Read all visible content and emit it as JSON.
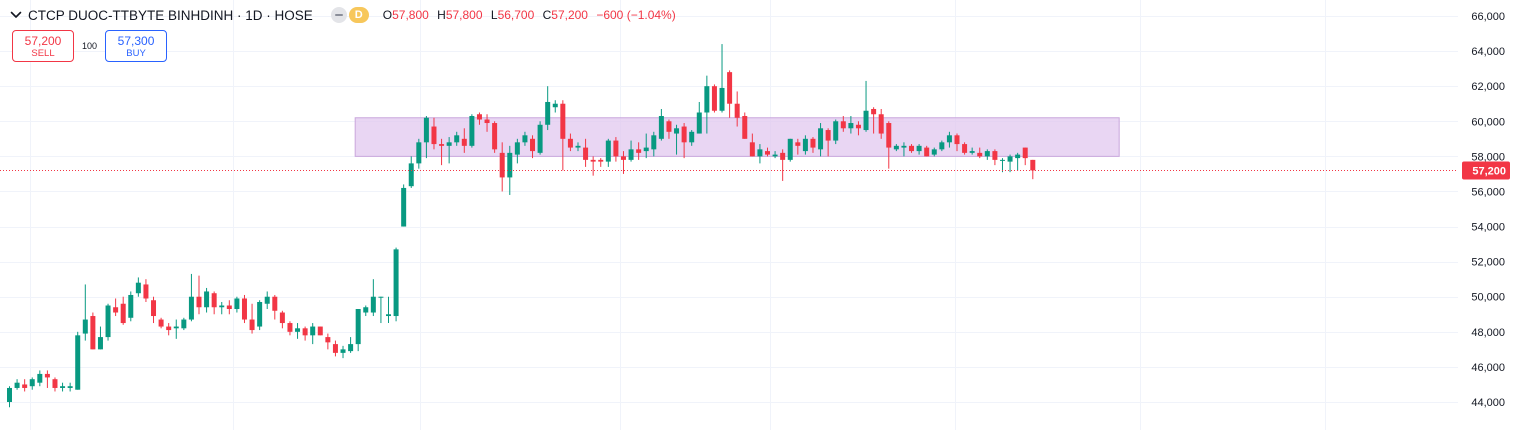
{
  "header": {
    "title": "CTCP DUOC-TTBYTE BINHDINH · 1D · HOSE",
    "badge_label": "D",
    "open_label": "O",
    "open": "57,800",
    "high_label": "H",
    "high": "57,800",
    "low_label": "L",
    "low": "56,700",
    "close_label": "C",
    "close": "57,200",
    "change": "−600 (−1.04%)"
  },
  "trade": {
    "sell_price": "57,200",
    "sell_label": "SELL",
    "quantity": "100",
    "buy_price": "57,300",
    "buy_label": "BUY"
  },
  "colors": {
    "up": "#089981",
    "down": "#f23645",
    "zone_fill": "#e1c8ef",
    "zone_border": "#c9a6dc",
    "grid": "#f0f3fa",
    "axis_text": "#131722",
    "price_label_bg": "#f23645"
  },
  "chart_data": {
    "type": "candlestick",
    "y_ticks": [
      "44,000",
      "46,000",
      "48,000",
      "50,000",
      "52,000",
      "54,000",
      "56,000",
      "58,000",
      "60,000",
      "62,000",
      "64,000",
      "66,000"
    ],
    "ylim": [
      43200,
      66500
    ],
    "last_price": 57200,
    "last_price_label": "57,200",
    "zone": {
      "low": 58000,
      "high": 60200,
      "start_index": 46,
      "end_index": 146
    },
    "candles": [
      [
        44000,
        44800,
        43700,
        44900
      ],
      [
        44800,
        45100,
        44700,
        45300
      ],
      [
        45000,
        44800,
        44600,
        45300
      ],
      [
        44900,
        45300,
        44700,
        45400
      ],
      [
        45100,
        45600,
        44900,
        45800
      ],
      [
        45600,
        45400,
        44800,
        45800
      ],
      [
        45300,
        44800,
        44600,
        45400
      ],
      [
        44800,
        44900,
        44600,
        45100
      ],
      [
        44800,
        44900,
        44600,
        45100
      ],
      [
        44700,
        47800,
        44700,
        48000
      ],
      [
        47900,
        48700,
        47500,
        50700
      ],
      [
        48900,
        47000,
        47000,
        49100
      ],
      [
        47000,
        47700,
        47000,
        48300
      ],
      [
        47700,
        49500,
        47500,
        49600
      ],
      [
        49400,
        49100,
        48900,
        49900
      ],
      [
        49600,
        48500,
        48400,
        50000
      ],
      [
        48800,
        50100,
        48600,
        50300
      ],
      [
        50200,
        50800,
        50000,
        51100
      ],
      [
        50700,
        49900,
        49700,
        51000
      ],
      [
        49800,
        48900,
        48500,
        50000
      ],
      [
        48700,
        48300,
        48200,
        48800
      ],
      [
        48300,
        48100,
        47800,
        48500
      ],
      [
        48200,
        48300,
        47600,
        48700
      ],
      [
        48200,
        48700,
        48100,
        48800
      ],
      [
        48700,
        50000,
        48600,
        51300
      ],
      [
        50000,
        49400,
        49000,
        51200
      ],
      [
        49400,
        50300,
        49100,
        50500
      ],
      [
        50200,
        49400,
        49000,
        50300
      ],
      [
        49400,
        49500,
        49000,
        49700
      ],
      [
        49500,
        49300,
        49000,
        49800
      ],
      [
        49300,
        49900,
        49100,
        50000
      ],
      [
        49900,
        48700,
        48500,
        50100
      ],
      [
        48700,
        48100,
        47900,
        49600
      ],
      [
        48300,
        49700,
        48100,
        49800
      ],
      [
        49600,
        50000,
        49300,
        50300
      ],
      [
        50000,
        49200,
        48700,
        50100
      ],
      [
        49100,
        48500,
        48200,
        49200
      ],
      [
        48500,
        48000,
        47800,
        48600
      ],
      [
        48000,
        48200,
        47600,
        48500
      ],
      [
        48200,
        47800,
        47500,
        48300
      ],
      [
        47800,
        48300,
        47300,
        48500
      ],
      [
        48300,
        47800,
        47800,
        48300
      ],
      [
        47700,
        47400,
        47000,
        47900
      ],
      [
        47300,
        46800,
        46600,
        47500
      ],
      [
        46800,
        47000,
        46500,
        47200
      ],
      [
        46900,
        47300,
        46800,
        47700
      ],
      [
        47300,
        49300,
        46900,
        49300
      ],
      [
        49100,
        49400,
        48900,
        49500
      ],
      [
        49100,
        50000,
        48900,
        51000
      ],
      [
        50000,
        50000,
        48500,
        50000
      ],
      [
        48900,
        49000,
        48500,
        50000
      ],
      [
        48900,
        52700,
        48600,
        52800
      ],
      [
        54000,
        56200,
        54000,
        56400
      ],
      [
        56300,
        57600,
        56200,
        58000
      ],
      [
        57600,
        58800,
        57300,
        59000
      ],
      [
        58800,
        60200,
        57900,
        60300
      ],
      [
        59700,
        58700,
        58400,
        60200
      ],
      [
        58700,
        58600,
        57500,
        59000
      ],
      [
        58600,
        58800,
        57600,
        59100
      ],
      [
        58800,
        59200,
        58600,
        59400
      ],
      [
        59000,
        58600,
        58200,
        59600
      ],
      [
        58600,
        60300,
        58500,
        60400
      ],
      [
        60400,
        60100,
        59800,
        60500
      ],
      [
        60100,
        59900,
        59400,
        60400
      ],
      [
        59900,
        58400,
        58200,
        60000
      ],
      [
        58200,
        56800,
        56000,
        58800
      ],
      [
        56800,
        58200,
        55800,
        58600
      ],
      [
        58100,
        58800,
        57600,
        59000
      ],
      [
        58800,
        59200,
        58600,
        59400
      ],
      [
        59000,
        58300,
        57900,
        59200
      ],
      [
        58200,
        59800,
        58100,
        60000
      ],
      [
        59800,
        61100,
        59500,
        62000
      ],
      [
        60800,
        61000,
        60500,
        61200
      ],
      [
        61000,
        59000,
        57200,
        61200
      ],
      [
        59000,
        58500,
        58300,
        59300
      ],
      [
        58500,
        58600,
        58300,
        58800
      ],
      [
        58500,
        57800,
        57400,
        59000
      ],
      [
        57800,
        57700,
        56900,
        58000
      ],
      [
        57800,
        57700,
        57400,
        57900
      ],
      [
        57700,
        58900,
        57400,
        59000
      ],
      [
        58900,
        58000,
        57700,
        59100
      ],
      [
        58000,
        57800,
        57000,
        58300
      ],
      [
        57800,
        58400,
        57700,
        58900
      ],
      [
        58400,
        58200,
        57800,
        58800
      ],
      [
        58300,
        58500,
        57900,
        59300
      ],
      [
        58400,
        59200,
        58000,
        59400
      ],
      [
        59000,
        60300,
        58900,
        60700
      ],
      [
        60000,
        59400,
        59000,
        60100
      ],
      [
        59300,
        59600,
        58100,
        59800
      ],
      [
        59700,
        58800,
        57900,
        59900
      ],
      [
        58800,
        59400,
        58600,
        59500
      ],
      [
        59300,
        60500,
        59300,
        61100
      ],
      [
        60500,
        62000,
        59300,
        62600
      ],
      [
        62000,
        60600,
        60500,
        62100
      ],
      [
        60600,
        61900,
        60500,
        64400
      ],
      [
        62800,
        61000,
        60200,
        62900
      ],
      [
        61000,
        60200,
        59700,
        61700
      ],
      [
        60300,
        59000,
        59000,
        60500
      ],
      [
        58800,
        58000,
        58000,
        59300
      ],
      [
        58000,
        58400,
        57600,
        58700
      ],
      [
        58300,
        58100,
        58000,
        58500
      ],
      [
        58000,
        58100,
        57900,
        58300
      ],
      [
        58200,
        57800,
        56600,
        58400
      ],
      [
        57800,
        59000,
        57700,
        59000
      ],
      [
        58800,
        58600,
        58100,
        59000
      ],
      [
        58300,
        59000,
        58100,
        59200
      ],
      [
        59000,
        58500,
        58200,
        59100
      ],
      [
        58400,
        59600,
        58000,
        59900
      ],
      [
        59500,
        58900,
        58000,
        59600
      ],
      [
        58900,
        60000,
        58700,
        60100
      ],
      [
        60000,
        59600,
        59400,
        60300
      ],
      [
        59600,
        59900,
        59300,
        60300
      ],
      [
        59800,
        59600,
        59200,
        60000
      ],
      [
        59500,
        60600,
        59400,
        62300
      ],
      [
        60700,
        60400,
        59300,
        60800
      ],
      [
        60400,
        59300,
        59000,
        60700
      ],
      [
        59900,
        58500,
        57300,
        60000
      ],
      [
        58400,
        58600,
        58300,
        58700
      ],
      [
        58500,
        58600,
        58000,
        58800
      ],
      [
        58600,
        58300,
        58200,
        58700
      ],
      [
        58300,
        58600,
        58100,
        58700
      ],
      [
        58500,
        58000,
        58000,
        58600
      ],
      [
        58100,
        58400,
        58000,
        58500
      ],
      [
        58400,
        58800,
        58300,
        58900
      ],
      [
        58800,
        59200,
        58500,
        59400
      ],
      [
        59200,
        58700,
        58300,
        59300
      ],
      [
        58700,
        58200,
        58100,
        58800
      ],
      [
        58200,
        58300,
        58100,
        58500
      ],
      [
        58200,
        58000,
        57900,
        58500
      ],
      [
        58000,
        58300,
        57800,
        58400
      ],
      [
        58300,
        57800,
        57500,
        58400
      ],
      [
        57800,
        57800,
        57100,
        57900
      ],
      [
        57700,
        58000,
        57100,
        58100
      ],
      [
        57900,
        58100,
        57200,
        58200
      ],
      [
        58500,
        57900,
        57500,
        58500
      ],
      [
        57800,
        57200,
        56700,
        57800
      ]
    ]
  }
}
